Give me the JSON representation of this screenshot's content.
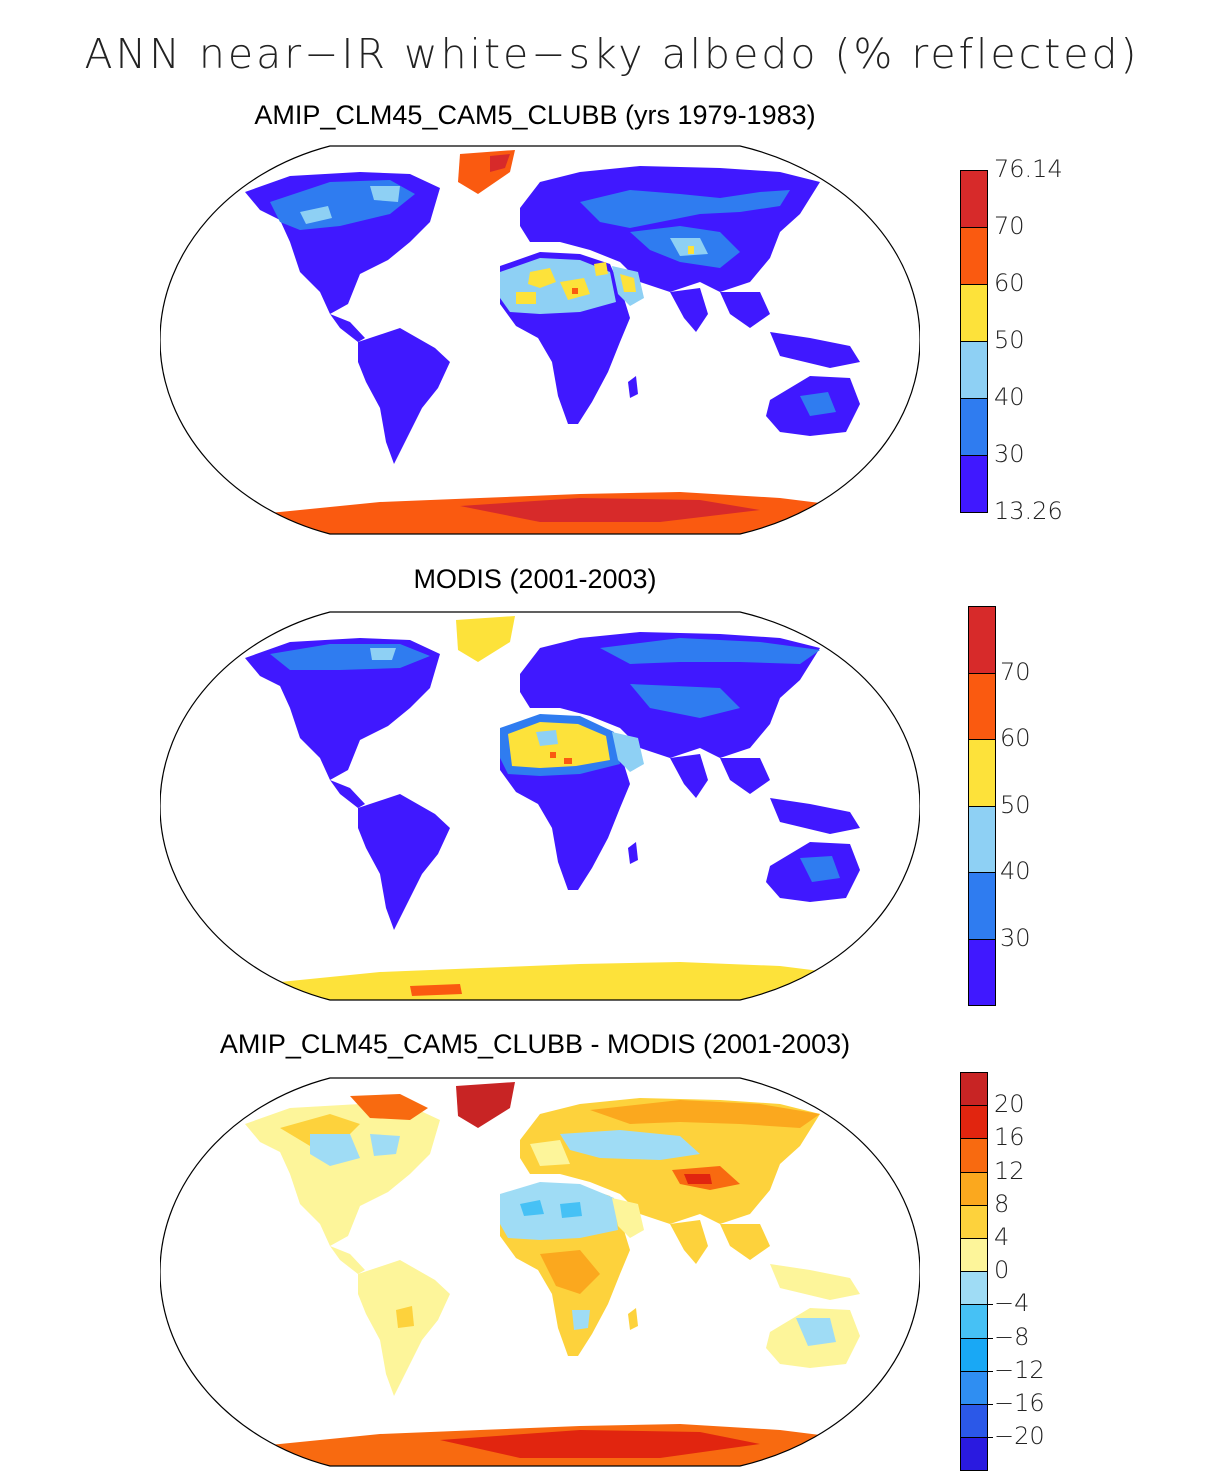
{
  "figure": {
    "title": "ANN near−IR white−sky albedo (% reflected)"
  },
  "panels": [
    {
      "title": "AMIP_CLM45_CAM5_CLUBB (yrs 1979-1983)",
      "colorbar": {
        "colors": [
          "#4018ff",
          "#2f7cf0",
          "#8ed0f4",
          "#fde23a",
          "#fa5a10",
          "#d72a2a"
        ],
        "labels": [
          "13.26",
          "30",
          "40",
          "50",
          "60",
          "70",
          "76.14"
        ]
      }
    },
    {
      "title": "MODIS (2001-2003)",
      "colorbar": {
        "colors": [
          "#4018ff",
          "#2f7cf0",
          "#8ed0f4",
          "#fde23a",
          "#fa5a10",
          "#d72a2a"
        ],
        "labels": [
          "30",
          "40",
          "50",
          "60",
          "70"
        ]
      }
    },
    {
      "title": "AMIP_CLM45_CAM5_CLUBB - MODIS (2001-2003)",
      "colorbar": {
        "colors": [
          "#2a1ae0",
          "#2b58e8",
          "#2f8ef2",
          "#19a8f5",
          "#46c1f5",
          "#9fdcf5",
          "#fdf59a",
          "#fdd23c",
          "#fba81e",
          "#f86a10",
          "#e1250f",
          "#c82424"
        ],
        "labels": [
          "−20",
          "−16",
          "−12",
          "−8",
          "−4",
          "0",
          "4",
          "8",
          "12",
          "16",
          "20"
        ]
      }
    }
  ]
}
